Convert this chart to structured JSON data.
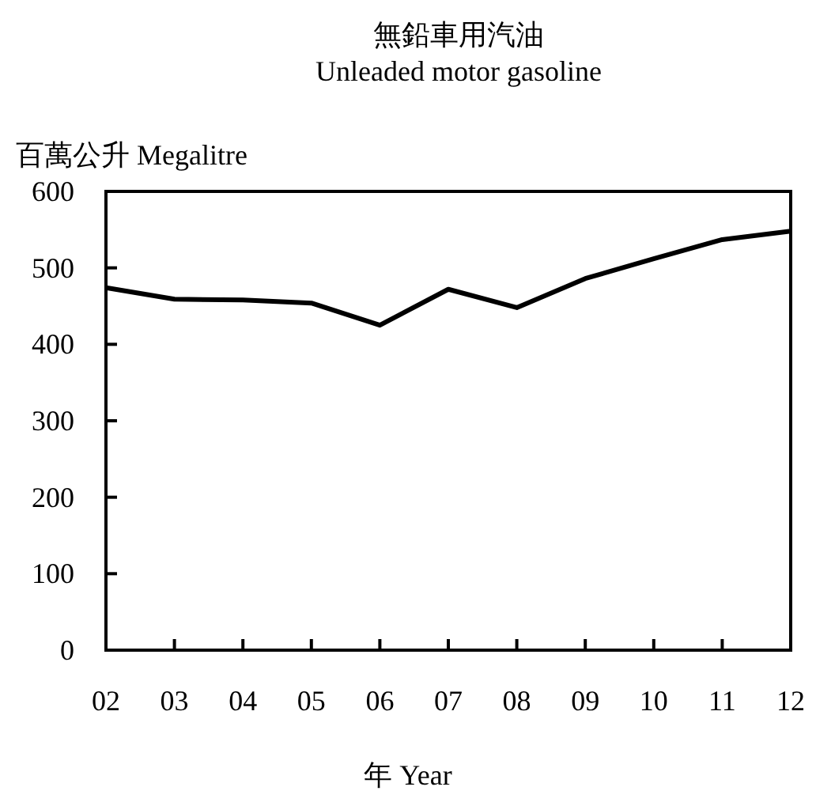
{
  "chart_data": {
    "type": "line",
    "title": "無鉛車用汽油",
    "subtitle": "Unleaded motor gasoline",
    "ylabel": "百萬公升 Megalitre",
    "xlabel": "年  Year",
    "categories": [
      "02",
      "03",
      "04",
      "05",
      "06",
      "07",
      "08",
      "09",
      "10",
      "11",
      "12"
    ],
    "series": [
      {
        "color": "#000000",
        "values": [
          474,
          459,
          458,
          454,
          425,
          472,
          448,
          486,
          512,
          537,
          548
        ]
      }
    ],
    "ylim": [
      0,
      600
    ],
    "yticks": [
      0,
      100,
      200,
      300,
      400,
      500,
      600
    ],
    "grid": false,
    "marker": "none",
    "line_style": "solid"
  }
}
